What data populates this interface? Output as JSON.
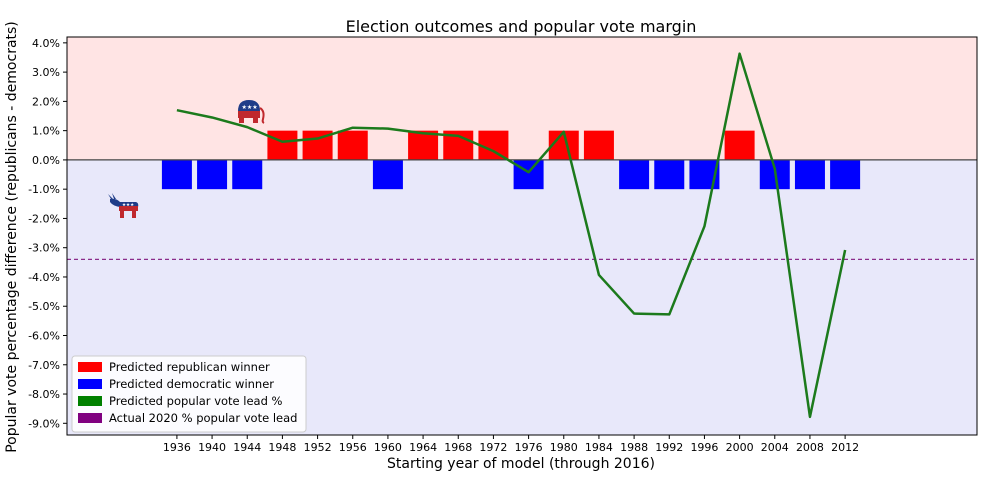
{
  "chart_data": {
    "type": "bar",
    "title": "Election outcomes and popular vote margin",
    "xlabel": "Starting year of model (through 2016)",
    "ylabel": "Popular vote percentage difference (republicans - democrats)",
    "ylim": [
      -9.4,
      4.2
    ],
    "y_ticks": [
      -9,
      -8,
      -7,
      -6,
      -5,
      -4,
      -3,
      -2,
      -1,
      0,
      1,
      2,
      3,
      4
    ],
    "y_tick_labels": [
      "-9.0%",
      "-8.0%",
      "-7.0%",
      "-6.0%",
      "-5.0%",
      "-4.0%",
      "-3.0%",
      "-2.0%",
      "-1.0%",
      "0.0%",
      "1.0%",
      "2.0%",
      "3.0%",
      "4.0%"
    ],
    "xlim": [
      1923.5,
      2027
    ],
    "categories": [
      "1936",
      "1940",
      "1944",
      "1948",
      "1952",
      "1956",
      "1960",
      "1964",
      "1968",
      "1972",
      "1976",
      "1980",
      "1984",
      "1988",
      "1992",
      "1996",
      "2000",
      "2004",
      "2008",
      "2012"
    ],
    "x": [
      1936,
      1940,
      1944,
      1948,
      1952,
      1956,
      1960,
      1964,
      1968,
      1972,
      1976,
      1980,
      1984,
      1988,
      1992,
      1996,
      2000,
      2004,
      2008,
      2012
    ],
    "winner_bars": [
      -1,
      -1,
      -1,
      1,
      1,
      1,
      -1,
      1,
      1,
      1,
      -1,
      1,
      1,
      -1,
      -1,
      -1,
      1,
      -1,
      -1,
      -1
    ],
    "predicted_lead": [
      1.7,
      1.45,
      1.12,
      0.62,
      0.73,
      1.1,
      1.07,
      0.91,
      0.82,
      0.3,
      -0.42,
      0.96,
      -3.93,
      -5.25,
      -5.28,
      -2.27,
      3.63,
      -0.3,
      -8.78,
      -3.08
    ],
    "actual_2020_lead": -3.4,
    "series": [
      {
        "name": "Predicted republican winner",
        "color": "#ff0000"
      },
      {
        "name": "Predicted democratic winner",
        "color": "#0000ff"
      },
      {
        "name": "Predicted popular vote lead %",
        "color": "#008000"
      },
      {
        "name": "Actual 2020 % popular vote lead",
        "color": "#800080"
      }
    ],
    "background_colors": {
      "positive": "#ffe4e4",
      "negative": "#e8e8fa"
    },
    "line_color": "#1c7a1c",
    "dashed_line_color": "#8b2c8b",
    "legend_position": "lower-left",
    "icons": [
      "republican-elephant-icon",
      "democrat-donkey-icon"
    ],
    "grid": false
  }
}
